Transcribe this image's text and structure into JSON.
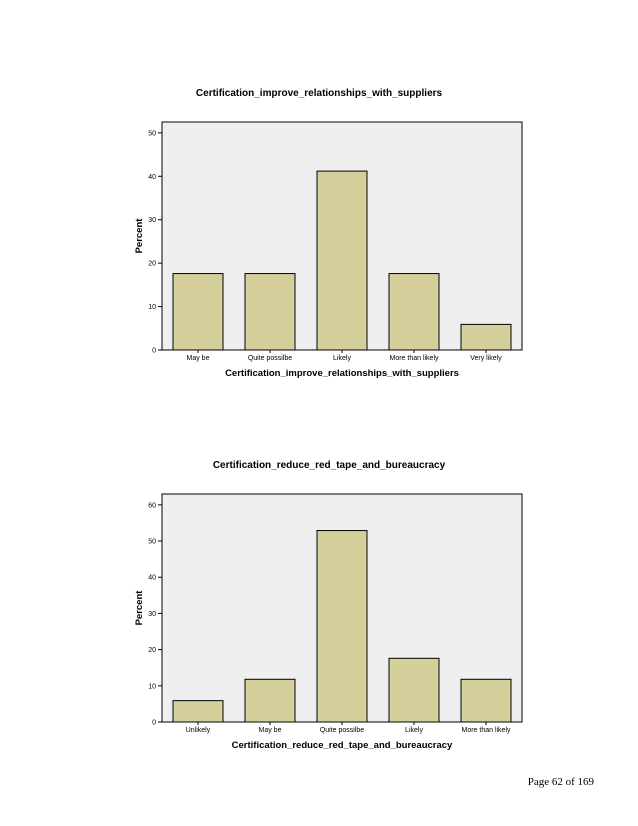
{
  "page": {
    "footer": "Page 62 of 169"
  },
  "colors": {
    "bar_fill": "#d5cf9b",
    "plot_bg": "#efefef",
    "bar_stroke": "#000000"
  },
  "chart_data": [
    {
      "type": "bar",
      "title": "Certification_improve_relationships_with_suppliers",
      "xlabel": "Certification_improve_relationships_with_suppliers",
      "ylabel": "Percent",
      "categories": [
        "May be",
        "Quite possilbe",
        "Likely",
        "More than likely",
        "Very likely"
      ],
      "values": [
        17.6,
        17.6,
        41.2,
        17.6,
        5.9
      ],
      "ylim": [
        0,
        52.5
      ],
      "yticks": [
        0,
        10,
        20,
        30,
        40,
        50
      ],
      "grid": false,
      "legend": "none"
    },
    {
      "type": "bar",
      "title": "Certification_reduce_red_tape_and_bureaucracy",
      "xlabel": "Certification_reduce_red_tape_and_bureaucracy",
      "ylabel": "Percent",
      "categories": [
        "Unlikely",
        "May be",
        "Quite possilbe",
        "Likely",
        "More than likely"
      ],
      "values": [
        5.9,
        11.8,
        52.9,
        17.6,
        11.8
      ],
      "ylim": [
        0,
        63
      ],
      "yticks": [
        0,
        10,
        20,
        30,
        40,
        50,
        60
      ],
      "grid": false,
      "legend": "none"
    }
  ]
}
